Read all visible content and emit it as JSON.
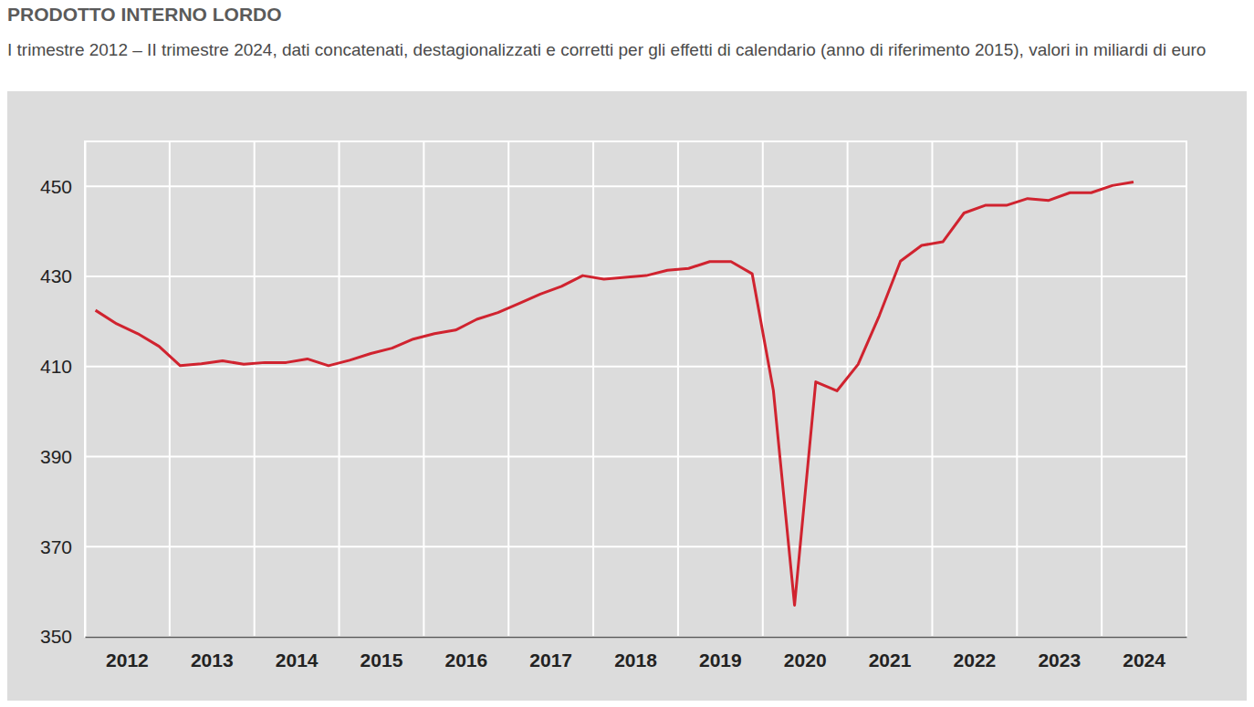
{
  "chart_data": {
    "type": "line",
    "title": "PRODOTTO INTERNO LORDO",
    "subtitle": "I trimestre 2012 – II trimestre 2024, dati concatenati, destagionalizzati e corretti per gli effetti di calendario (anno di riferimento 2015), valori in miliardi di euro",
    "categories": [
      null,
      null,
      "2012",
      null,
      null,
      null,
      "2013",
      null,
      null,
      null,
      "2014",
      null,
      null,
      null,
      "2015",
      null,
      null,
      null,
      "2016",
      null,
      null,
      null,
      "2017",
      null,
      null,
      null,
      "2018",
      null,
      null,
      null,
      "2019",
      null,
      null,
      null,
      "2020",
      null,
      null,
      null,
      "2021",
      null,
      null,
      null,
      "2022",
      null,
      null,
      null,
      "2023",
      null,
      null,
      null,
      "2024",
      null
    ],
    "values": [
      422.5,
      419.5,
      417.3,
      414.5,
      410.2,
      410.6,
      411.3,
      410.5,
      410.9,
      410.9,
      411.7,
      410.2,
      411.4,
      412.9,
      414.1,
      416.1,
      417.3,
      418.1,
      420.5,
      422.0,
      424.0,
      426.1,
      427.8,
      430.2,
      429.4,
      429.8,
      430.2,
      431.4,
      431.8,
      433.3,
      433.3,
      430.6,
      404.7,
      357.0,
      406.6,
      404.6,
      410.5,
      421.3,
      433.4,
      436.9,
      437.7,
      444.1,
      445.8,
      445.8,
      447.3,
      446.9,
      448.6,
      448.6,
      450.2,
      451.0,
      null,
      null
    ],
    "color": "#d0232f",
    "ylim": [
      350,
      460
    ],
    "yticks": [
      350,
      370,
      390,
      410,
      430,
      450
    ],
    "grid": true
  }
}
